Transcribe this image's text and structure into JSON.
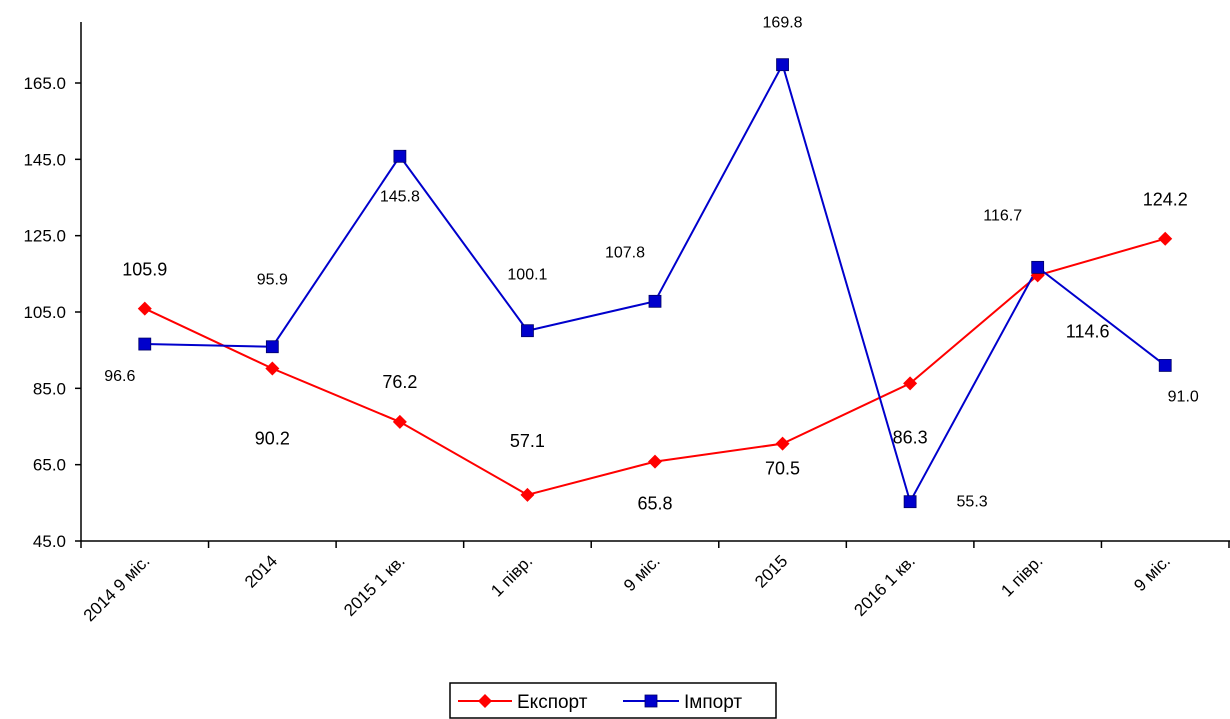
{
  "chart_data": {
    "type": "line",
    "categories": [
      "2014 9 міс.",
      "2014",
      "2015 1 кв.",
      "1 півр.",
      "9 міс.",
      "2015",
      "2016 1 кв.",
      "1 півр.",
      "9 міс."
    ],
    "series": [
      {
        "name": "Експорт",
        "values": [
          105.9,
          90.2,
          76.2,
          57.1,
          65.8,
          70.5,
          86.3,
          114.6,
          124.2
        ],
        "color": "#FF0000",
        "marker": "diamond"
      },
      {
        "name": "Імпорт",
        "values": [
          96.6,
          95.9,
          145.8,
          100.1,
          107.8,
          169.8,
          55.3,
          116.7,
          91.0
        ],
        "color": "#0000CC",
        "marker": "square"
      }
    ],
    "y_ticks": [
      "45.0",
      "65.0",
      "85.0",
      "105.0",
      "125.0",
      "145.0",
      "165.0"
    ],
    "ylim": [
      45,
      180
    ],
    "grid": false,
    "legend_position": "bottom-center",
    "data_labels": {
      "Експорт": [
        "105.9",
        "90.2",
        "76.2",
        "57.1",
        "65.8",
        "70.5",
        "86.3",
        "114.6",
        "124.2"
      ],
      "Імпорт": [
        "96.6",
        "95.9",
        "145.8",
        "100.1",
        "107.8",
        "169.8",
        "55.3",
        "116.7",
        "91.0"
      ]
    }
  }
}
